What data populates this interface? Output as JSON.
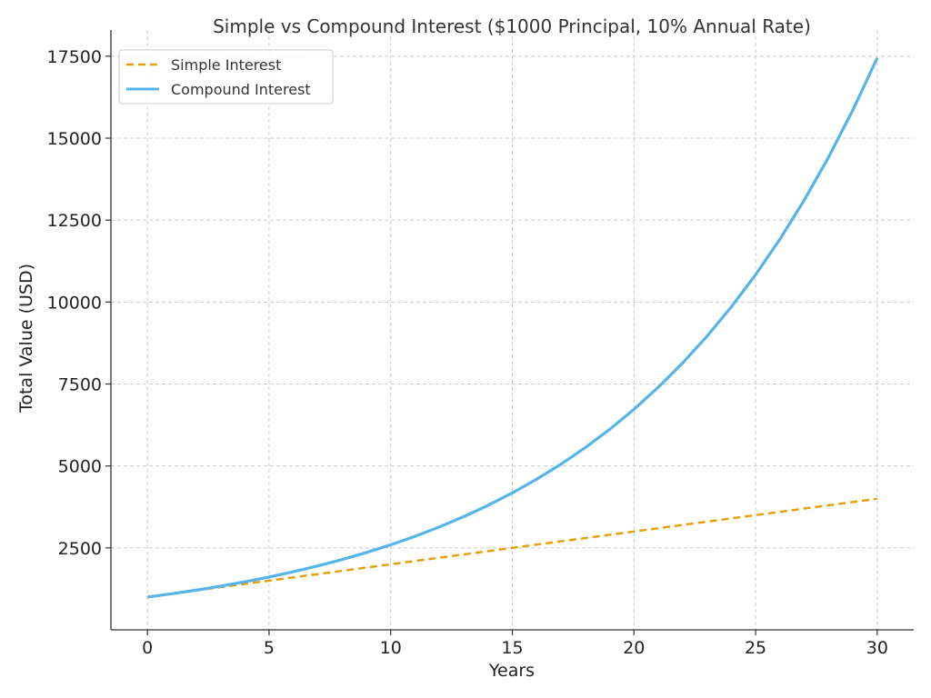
{
  "chart_data": {
    "type": "line",
    "title": "Simple vs Compound Interest ($1000 Principal, 10% Annual Rate)",
    "xlabel": "Years",
    "ylabel": "Total Value (USD)",
    "xlim": [
      -1.5,
      31.5
    ],
    "ylim": [
      0,
      18300
    ],
    "x_ticks": [
      0,
      5,
      10,
      15,
      20,
      25,
      30
    ],
    "y_ticks": [
      2500,
      5000,
      7500,
      10000,
      12500,
      15000,
      17500
    ],
    "grid": true,
    "legend_position": "top-left",
    "x": [
      0,
      1,
      2,
      3,
      4,
      5,
      6,
      7,
      8,
      9,
      10,
      11,
      12,
      13,
      14,
      15,
      16,
      17,
      18,
      19,
      20,
      21,
      22,
      23,
      24,
      25,
      26,
      27,
      28,
      29,
      30
    ],
    "series": [
      {
        "name": "Simple Interest",
        "color": "#e69f00",
        "dash": true,
        "values": [
          1000,
          1100,
          1200,
          1300,
          1400,
          1500,
          1600,
          1700,
          1800,
          1900,
          2000,
          2100,
          2200,
          2300,
          2400,
          2500,
          2600,
          2700,
          2800,
          2900,
          3000,
          3100,
          3200,
          3300,
          3400,
          3500,
          3600,
          3700,
          3800,
          3900,
          4000
        ]
      },
      {
        "name": "Compound Interest",
        "color": "#56b4e9",
        "dash": false,
        "values": [
          1000,
          1100,
          1210,
          1331,
          1464.1,
          1610.51,
          1771.56,
          1948.72,
          2143.59,
          2357.95,
          2593.74,
          2853.12,
          3138.43,
          3452.27,
          3797.5,
          4177.25,
          4594.97,
          5054.47,
          5559.92,
          6115.91,
          6727.5,
          7400.25,
          8140.27,
          8954.3,
          9849.73,
          10834.71,
          11918.18,
          13109.99,
          14420.99,
          15863.09,
          17449.4
        ]
      }
    ]
  }
}
